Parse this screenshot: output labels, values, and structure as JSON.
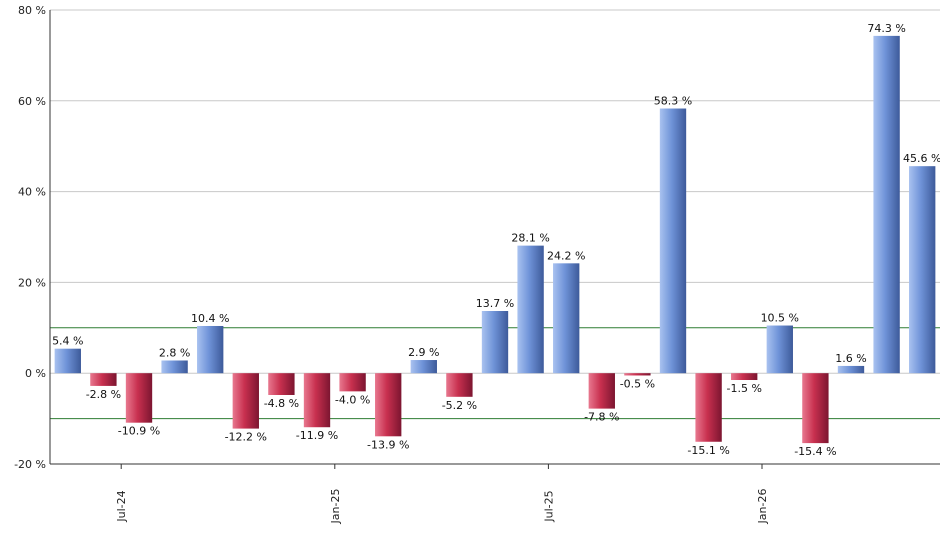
{
  "chart_data": {
    "type": "bar",
    "title": "",
    "xlabel": "",
    "ylabel": "",
    "ylim": [
      -20,
      80
    ],
    "y_ticks": [
      "80 %",
      "60 %",
      "40 %",
      "20 %",
      "0 %",
      "-20 %"
    ],
    "y_tick_values": [
      80,
      60,
      40,
      20,
      0,
      -20
    ],
    "x_tick_labels": [
      "Jul-24",
      "Jan-25",
      "Jul-25",
      "Jan-26"
    ],
    "x_tick_after_index": [
      1,
      7,
      13,
      19
    ],
    "reference_lines": [
      10,
      -10
    ],
    "grid": true,
    "values": [
      5.4,
      -2.8,
      -10.9,
      2.8,
      10.4,
      -12.2,
      -4.8,
      -11.9,
      -4.0,
      -13.9,
      2.9,
      -5.2,
      13.7,
      28.1,
      24.2,
      -7.8,
      -0.5,
      58.3,
      -15.1,
      -1.5,
      10.5,
      -15.4,
      1.6,
      74.3,
      45.6
    ],
    "labels": [
      "5.4 %",
      "-2.8 %",
      "-10.9 %",
      "2.8 %",
      "10.4 %",
      "-12.2 %",
      "-4.8 %",
      "-11.9 %",
      "-4.0 %",
      "-13.9 %",
      "2.9 %",
      "-5.2 %",
      "13.7 %",
      "28.1 %",
      "24.2 %",
      "-7.8 %",
      "-0.5 %",
      "58.3 %",
      "-15.1 %",
      "-1.5 %",
      "10.5 %",
      "-15.4 %",
      "1.6 %",
      "74.3 %",
      "45.6 %"
    ],
    "colors": {
      "positive": "#6f93d8",
      "positive_light": "#a9c2f0",
      "positive_dark": "#3d5a9a",
      "negative": "#c8304f",
      "negative_light": "#e8788f",
      "negative_dark": "#7c1530",
      "grid": "#c8c8c8",
      "reference_line": "#2e7d32",
      "axis": "#333333"
    }
  }
}
